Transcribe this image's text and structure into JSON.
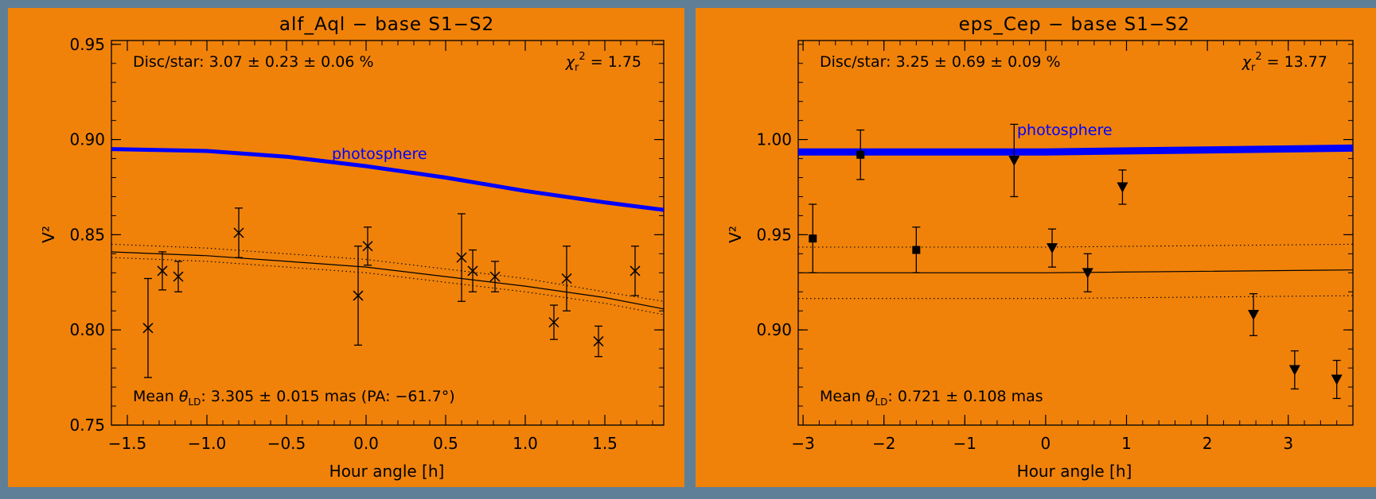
{
  "colors": {
    "panel_bg": "#f0820a",
    "frame": "#5f7f97",
    "data": "#000000",
    "photosphere": "#0000ff"
  },
  "chart_data": [
    {
      "type": "scatter",
      "title": "alf_Aql − base S1−S2",
      "xlabel": "Hour angle [h]",
      "ylabel": "V²",
      "xlim": [
        -1.6,
        1.87
      ],
      "ylim": [
        0.75,
        0.952
      ],
      "xticks": [
        -1.5,
        -1.0,
        -0.5,
        0.0,
        0.5,
        1.0,
        1.5
      ],
      "xtick_labels": [
        "−1.5",
        "−1.0",
        "−0.5",
        "0.0",
        "0.5",
        "1.0",
        "1.5"
      ],
      "yticks": [
        0.75,
        0.8,
        0.85,
        0.9,
        0.95
      ],
      "ytick_labels": [
        "0.75",
        "0.80",
        "0.85",
        "0.90",
        "0.95"
      ],
      "marker": "x",
      "annotation_top_left": "Disc/star:  3.07 ± 0.23 ± 0.06 %",
      "chi2_value": "1.75",
      "mean_prefix": "Mean",
      "mean_value": ": 3.305 ± 0.015 mas (PA: −61.7°)",
      "photosphere_label": "photosphere",
      "photosphere_x": [
        -1.6,
        -1.0,
        -0.5,
        0.0,
        0.5,
        1.0,
        1.5,
        1.87
      ],
      "photosphere_y": [
        0.895,
        0.894,
        0.891,
        0.886,
        0.88,
        0.873,
        0.867,
        0.863
      ],
      "fit_x": [
        -1.6,
        -1.0,
        -0.5,
        0.0,
        0.5,
        1.0,
        1.5,
        1.87
      ],
      "fit_y": [
        0.841,
        0.839,
        0.836,
        0.833,
        0.828,
        0.823,
        0.817,
        0.811
      ],
      "fit_upper": [
        0.845,
        0.843,
        0.84,
        0.837,
        0.832,
        0.827,
        0.82,
        0.815
      ],
      "fit_lower": [
        0.838,
        0.836,
        0.833,
        0.83,
        0.825,
        0.82,
        0.814,
        0.808
      ],
      "series": [
        {
          "x": [
            -1.37,
            -1.28,
            -1.18,
            -0.8,
            -0.05,
            0.01,
            0.6,
            0.67,
            0.81,
            1.18,
            1.26,
            1.46,
            1.69
          ],
          "y": [
            0.801,
            0.831,
            0.828,
            0.851,
            0.818,
            0.844,
            0.838,
            0.831,
            0.828,
            0.804,
            0.827,
            0.794,
            0.831
          ],
          "err": [
            0.026,
            0.01,
            0.008,
            0.013,
            0.026,
            0.01,
            0.023,
            0.011,
            0.008,
            0.009,
            0.017,
            0.008,
            0.013
          ]
        }
      ]
    },
    {
      "type": "scatter",
      "title": "eps_Cep − base S1−S2",
      "xlabel": "Hour angle [h]",
      "ylabel": "V²",
      "xlim": [
        -3.06,
        3.8
      ],
      "ylim": [
        0.85,
        1.052
      ],
      "xticks": [
        -3,
        -2,
        -1,
        0,
        1,
        2,
        3
      ],
      "xtick_labels": [
        "−3",
        "−2",
        "−1",
        "0",
        "1",
        "2",
        "3"
      ],
      "yticks": [
        0.9,
        0.95,
        1.0
      ],
      "ytick_labels": [
        "0.90",
        "0.95",
        "1.00"
      ],
      "annotation_top_left": "Disc/star:  3.25 ± 0.69 ± 0.09 %",
      "chi2_value": "13.77",
      "mean_prefix": "Mean",
      "mean_value": ": 0.721 ± 0.108 mas",
      "photosphere_label": "photosphere",
      "photosphere_x": [
        -3.06,
        0.0,
        3.8
      ],
      "photosphere_y": [
        0.9935,
        0.9935,
        0.9955
      ],
      "fit_x": [
        -3.06,
        0.0,
        3.8
      ],
      "fit_y": [
        0.93,
        0.93,
        0.9315
      ],
      "fit_upper": [
        0.9435,
        0.9435,
        0.945
      ],
      "fit_lower": [
        0.9165,
        0.9165,
        0.918
      ],
      "series": [
        {
          "marker": "square",
          "x": [
            -2.88,
            -2.29,
            -1.6
          ],
          "y": [
            0.948,
            0.992,
            0.942
          ],
          "err": [
            0.018,
            0.013,
            0.012
          ]
        },
        {
          "marker": "triangle-down",
          "x": [
            -0.39,
            0.08,
            0.52,
            0.95,
            2.57,
            3.08,
            3.6
          ],
          "y": [
            0.989,
            0.943,
            0.93,
            0.975,
            0.908,
            0.879,
            0.874
          ],
          "err": [
            0.019,
            0.01,
            0.01,
            0.009,
            0.011,
            0.01,
            0.01
          ]
        }
      ]
    }
  ]
}
